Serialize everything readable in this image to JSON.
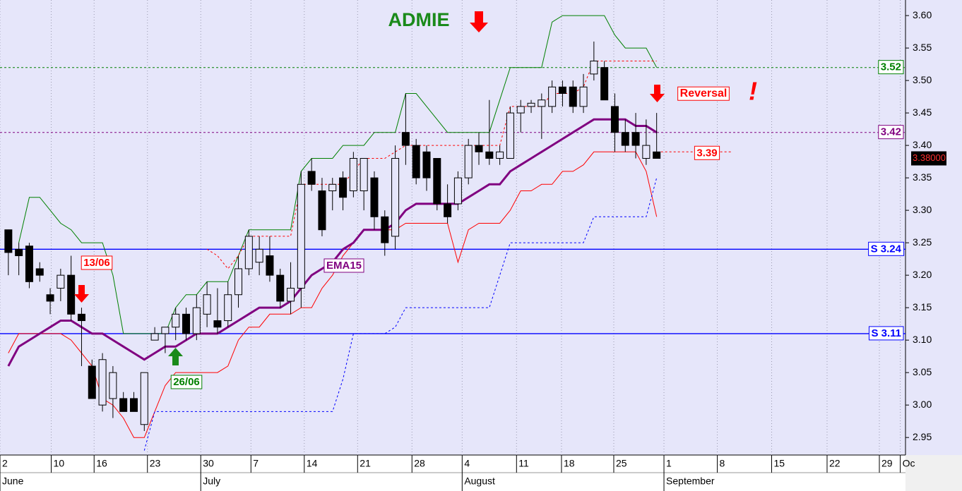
{
  "chart_data": {
    "type": "candlestick",
    "title": "ADMIE",
    "categories": [
      null,
      null,
      null,
      null,
      null,
      null,
      null,
      null,
      null,
      null,
      null,
      null,
      null,
      null,
      null,
      null,
      null,
      null,
      null,
      null,
      null,
      null,
      null,
      null,
      null,
      null,
      null,
      null,
      null,
      null,
      null,
      null,
      null,
      null,
      null,
      null,
      null,
      null,
      null,
      null,
      null,
      null,
      null,
      null,
      null,
      null,
      null,
      null,
      null,
      null,
      null,
      null,
      null,
      null,
      null,
      null,
      null,
      null,
      null,
      null,
      null,
      null,
      null
    ],
    "open": [
      3.27,
      3.24,
      3.245,
      3.21,
      3.17,
      3.18,
      3.2,
      3.14,
      3.06,
      3.0,
      3.01,
      3.01,
      3.01,
      2.97,
      3.1,
      3.11,
      3.12,
      3.14,
      3.11,
      3.14,
      3.13,
      3.13,
      3.17,
      3.21,
      3.22,
      3.23,
      3.2,
      3.16,
      3.18,
      3.36,
      3.33,
      3.33,
      3.35,
      3.33,
      3.33,
      3.35,
      3.29,
      3.26,
      3.42,
      3.4,
      3.39,
      3.38,
      3.31,
      3.31,
      3.35,
      3.4,
      3.39,
      3.38,
      3.38,
      3.45,
      3.46,
      3.46,
      3.46,
      3.49,
      3.49,
      3.46,
      3.51,
      3.52,
      3.46,
      3.42,
      3.42,
      3.38,
      3.39
    ],
    "high": [
      3.27,
      3.25,
      3.25,
      3.22,
      3.18,
      3.21,
      3.23,
      3.15,
      3.07,
      3.08,
      3.06,
      3.02,
      3.02,
      3.05,
      3.12,
      3.12,
      3.15,
      3.15,
      3.17,
      3.19,
      3.18,
      3.19,
      3.23,
      3.27,
      3.26,
      3.26,
      3.21,
      3.22,
      3.36,
      3.38,
      3.35,
      3.35,
      3.36,
      3.39,
      3.38,
      3.36,
      3.3,
      3.4,
      3.48,
      3.41,
      3.4,
      3.38,
      3.34,
      3.36,
      3.41,
      3.42,
      3.47,
      3.4,
      3.46,
      3.47,
      3.47,
      3.48,
      3.5,
      3.5,
      3.5,
      3.51,
      3.56,
      3.53,
      3.48,
      3.44,
      3.45,
      3.44,
      3.45
    ],
    "low": [
      3.2,
      3.2,
      3.18,
      3.19,
      3.14,
      3.16,
      3.13,
      3.06,
      3.01,
      2.99,
      2.98,
      2.99,
      2.99,
      2.96,
      3.1,
      3.08,
      3.1,
      3.1,
      3.1,
      3.12,
      3.11,
      3.12,
      3.15,
      3.2,
      3.2,
      3.19,
      3.15,
      3.14,
      3.15,
      3.33,
      3.26,
      3.3,
      3.3,
      3.32,
      3.3,
      3.27,
      3.23,
      3.24,
      3.37,
      3.34,
      3.33,
      3.3,
      3.28,
      3.3,
      3.34,
      3.37,
      3.37,
      3.37,
      3.38,
      3.42,
      3.45,
      3.41,
      3.45,
      3.46,
      3.45,
      3.45,
      3.5,
      3.47,
      3.39,
      3.39,
      3.38,
      3.37,
      3.38
    ],
    "close": [
      3.235,
      3.23,
      3.19,
      3.2,
      3.16,
      3.2,
      3.14,
      3.13,
      3.01,
      3.07,
      3.05,
      2.99,
      2.99,
      3.05,
      3.11,
      3.12,
      3.14,
      3.11,
      3.15,
      3.17,
      3.12,
      3.17,
      3.21,
      3.26,
      3.24,
      3.2,
      3.16,
      3.18,
      3.34,
      3.34,
      3.27,
      3.34,
      3.32,
      3.38,
      3.38,
      3.29,
      3.25,
      3.38,
      3.4,
      3.35,
      3.35,
      3.31,
      3.29,
      3.35,
      3.4,
      3.39,
      3.38,
      3.39,
      3.45,
      3.46,
      3.465,
      3.47,
      3.49,
      3.48,
      3.46,
      3.49,
      3.53,
      3.47,
      3.42,
      3.4,
      3.4,
      3.4,
      3.38
    ],
    "series": [
      {
        "color": "#008000",
        "values": [
          null,
          3.25,
          3.32,
          3.32,
          3.3,
          3.28,
          3.27,
          3.25,
          3.25,
          3.25,
          3.2,
          3.11,
          3.11,
          3.11,
          3.11,
          3.11,
          3.15,
          3.17,
          3.17,
          3.19,
          3.19,
          3.19,
          3.23,
          3.27,
          3.27,
          3.27,
          3.27,
          3.27,
          3.36,
          3.38,
          3.38,
          3.38,
          3.4,
          3.4,
          3.4,
          3.42,
          3.42,
          3.42,
          3.48,
          3.48,
          3.46,
          3.44,
          3.42,
          3.42,
          3.42,
          3.42,
          3.42,
          3.47,
          3.52,
          3.52,
          3.52,
          3.52,
          3.59,
          3.6,
          3.6,
          3.6,
          3.6,
          3.6,
          3.57,
          3.55,
          3.55,
          3.55,
          3.52
        ],
        "width": 1,
        "dash": false
      },
      {
        "color": "#ff0000",
        "values": [
          3.08,
          3.11,
          3.11,
          3.11,
          3.11,
          3.11,
          3.1,
          3.08,
          3.06,
          3.01,
          3.0,
          2.98,
          2.95,
          2.95,
          2.99,
          3.03,
          3.05,
          3.05,
          3.05,
          3.05,
          3.05,
          3.06,
          3.1,
          3.12,
          3.12,
          3.14,
          3.14,
          3.14,
          3.15,
          3.15,
          3.18,
          3.2,
          3.23,
          3.25,
          3.27,
          3.27,
          3.27,
          3.27,
          3.28,
          3.28,
          3.28,
          3.28,
          3.28,
          3.22,
          3.27,
          3.28,
          3.28,
          3.28,
          3.3,
          3.33,
          3.33,
          3.34,
          3.34,
          3.36,
          3.36,
          3.37,
          3.39,
          3.39,
          3.39,
          3.39,
          3.39,
          3.36,
          3.29
        ],
        "width": 1,
        "dash": false
      },
      {
        "color": "#ff0000",
        "values": [
          null,
          null,
          null,
          null,
          null,
          null,
          null,
          null,
          null,
          null,
          null,
          null,
          null,
          null,
          null,
          null,
          null,
          null,
          null,
          3.24,
          3.23,
          3.21,
          3.23,
          3.26,
          3.26,
          3.26,
          3.26,
          3.26,
          3.34,
          3.34,
          3.34,
          3.34,
          3.34,
          3.36,
          3.38,
          3.38,
          3.38,
          3.39,
          3.4,
          3.4,
          3.4,
          3.4,
          3.4,
          3.4,
          3.4,
          3.4,
          3.4,
          3.4,
          3.46,
          3.46,
          3.46,
          3.46,
          3.48,
          3.48,
          3.48,
          3.49,
          3.53,
          3.53,
          3.53,
          3.53,
          3.53,
          3.53,
          3.53
        ],
        "width": 1,
        "dash": true
      },
      {
        "color": "#0000ff",
        "values": [
          null,
          null,
          null,
          null,
          null,
          null,
          null,
          null,
          null,
          null,
          null,
          null,
          null,
          2.93,
          2.99,
          2.99,
          2.99,
          2.99,
          2.99,
          2.99,
          2.99,
          2.99,
          2.99,
          2.99,
          2.99,
          2.99,
          2.99,
          2.99,
          2.99,
          2.99,
          2.99,
          2.99,
          3.04,
          3.11,
          3.11,
          3.11,
          3.11,
          3.12,
          3.15,
          3.15,
          3.15,
          3.15,
          3.15,
          3.15,
          3.15,
          3.15,
          3.15,
          3.2,
          3.25,
          3.25,
          3.25,
          3.25,
          3.25,
          3.25,
          3.25,
          3.25,
          3.29,
          3.29,
          3.29,
          3.29,
          3.29,
          3.29,
          3.35
        ],
        "width": 1,
        "dash": true
      },
      {
        "name": "EMA15",
        "color": "#800080",
        "values": [
          3.06,
          3.09,
          3.1,
          3.11,
          3.12,
          3.13,
          3.13,
          3.12,
          3.11,
          3.11,
          3.1,
          3.09,
          3.08,
          3.07,
          3.08,
          3.09,
          3.09,
          3.1,
          3.11,
          3.11,
          3.11,
          3.12,
          3.13,
          3.14,
          3.15,
          3.15,
          3.15,
          3.16,
          3.18,
          3.2,
          3.21,
          3.22,
          3.24,
          3.25,
          3.27,
          3.27,
          3.27,
          3.28,
          3.3,
          3.31,
          3.31,
          3.31,
          3.31,
          3.31,
          3.32,
          3.33,
          3.34,
          3.34,
          3.36,
          3.37,
          3.38,
          3.39,
          3.4,
          3.41,
          3.42,
          3.43,
          3.44,
          3.44,
          3.44,
          3.44,
          3.43,
          3.43,
          3.42
        ],
        "width": 3,
        "dash": false
      }
    ],
    "levels": [
      {
        "value": 3.52,
        "label": "3.52",
        "color": "#008000",
        "dash": true
      },
      {
        "value": 3.42,
        "label": "3.42",
        "color": "#800080",
        "dash": true
      },
      {
        "value": 3.24,
        "label": "S 3.24",
        "color": "#0000ff",
        "dash": false
      },
      {
        "value": 3.11,
        "label": "S 3.11",
        "color": "#0000ff",
        "dash": false
      }
    ],
    "last_close_marker": {
      "value": 3.39,
      "label": "3.39",
      "color": "#ff0000"
    },
    "last_price": {
      "value": 3.38,
      "label": "3.38000"
    },
    "annotations": [
      {
        "text": "13/06",
        "color": "#ff0000"
      },
      {
        "text": "26/06",
        "color": "#008000"
      },
      {
        "text": "Reversal",
        "color": "#ff0000"
      },
      {
        "text": "!",
        "color": "#ff0000"
      }
    ],
    "xlim": [
      -0.8,
      85.8
    ],
    "ylim": [
      2.923,
      3.624
    ],
    "yticks": [
      {
        "value": 2.95,
        "label": "2.95"
      },
      {
        "value": 3.0,
        "label": "3.00"
      },
      {
        "value": 3.05,
        "label": "3.05"
      },
      {
        "value": 3.1,
        "label": "3.10"
      },
      {
        "value": 3.15,
        "label": "3.15"
      },
      {
        "value": 3.2,
        "label": "3.20"
      },
      {
        "value": 3.25,
        "label": "3.25"
      },
      {
        "value": 3.3,
        "label": "3.30"
      },
      {
        "value": 3.35,
        "label": "3.35"
      },
      {
        "value": 3.4,
        "label": "3.40"
      },
      {
        "value": 3.45,
        "label": "3.45"
      },
      {
        "value": 3.5,
        "label": "3.50"
      },
      {
        "value": 3.55,
        "label": "3.55"
      },
      {
        "value": 3.6,
        "label": "3.60"
      }
    ],
    "xticks": [
      {
        "value": -0.8,
        "label": "2"
      },
      {
        "value": 4.1,
        "label": "10"
      },
      {
        "value": 8.2,
        "label": "16"
      },
      {
        "value": 13.3,
        "label": "23"
      },
      {
        "value": 18.4,
        "label": "30"
      },
      {
        "value": 23.2,
        "label": "7"
      },
      {
        "value": 28.3,
        "label": "14"
      },
      {
        "value": 33.4,
        "label": "21"
      },
      {
        "value": 38.6,
        "label": "28"
      },
      {
        "value": 43.4,
        "label": "4"
      },
      {
        "value": 48.6,
        "label": "11"
      },
      {
        "value": 52.9,
        "label": "18"
      },
      {
        "value": 57.9,
        "label": "25"
      },
      {
        "value": 62.7,
        "label": "1"
      },
      {
        "value": 67.8,
        "label": "8"
      },
      {
        "value": 73.0,
        "label": "15"
      },
      {
        "value": 78.3,
        "label": "22"
      },
      {
        "value": 83.3,
        "label": "29"
      },
      {
        "value": 85.3,
        "label": "Oc"
      }
    ],
    "months": [
      {
        "value": -0.8,
        "label": "June"
      },
      {
        "value": 18.4,
        "label": "July"
      },
      {
        "value": 43.4,
        "label": "August"
      },
      {
        "value": 62.7,
        "label": "September"
      }
    ],
    "up_color": "#e6e6fa",
    "down_color": "#000000",
    "background": "#e6e6fa",
    "grid": true
  }
}
